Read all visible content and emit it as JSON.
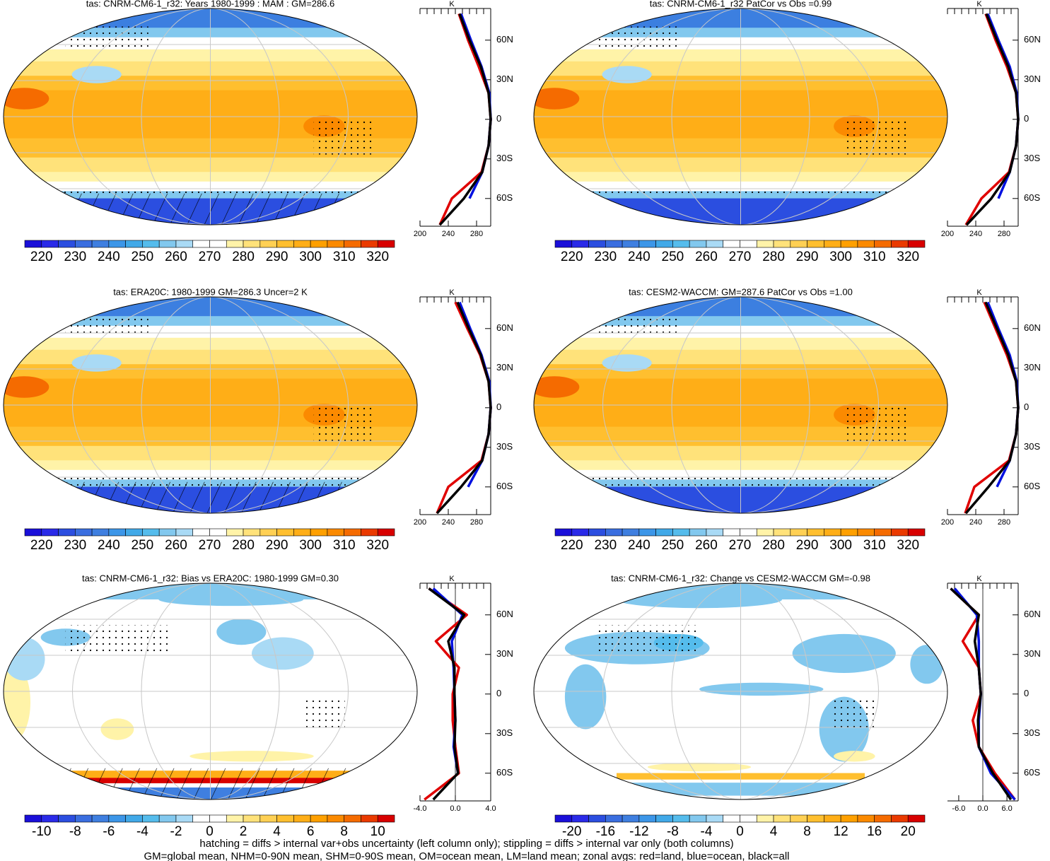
{
  "panels": [
    {
      "title": "tas: CNRM-CM6-1_r32: Years 1980-1999 : MAM : GM=286.6",
      "colorbar": {
        "colors": [
          "#1a0fd9",
          "#2a2ae8",
          "#2b4ee0",
          "#3a6ee0",
          "#3f7fe0",
          "#3c96e8",
          "#41a9e8",
          "#55bcec",
          "#82c8ee",
          "#a9daf5",
          "#ffffff",
          "#ffffff",
          "#fff3a8",
          "#ffe27a",
          "#ffd054",
          "#ffbf2f",
          "#ffae17",
          "#ffa000",
          "#fb8a00",
          "#f56b00",
          "#ea3a00",
          "#d80000"
        ],
        "labels": [
          220,
          230,
          240,
          250,
          260,
          270,
          280,
          290,
          300,
          310,
          320
        ]
      },
      "profile": {
        "x_label": "K",
        "xlim": [
          200,
          300
        ],
        "xticks": [
          200,
          240,
          280
        ],
        "ylim": [
          -81,
          84
        ],
        "yticks": [
          {
            "value": 60,
            "label": "60N"
          },
          {
            "value": 30,
            "label": "30N"
          },
          0,
          {
            "value": -30,
            "label": "30S"
          },
          {
            "value": -60,
            "label": "60S"
          }
        ],
        "lats": [
          80,
          60,
          40,
          20,
          0,
          -20,
          -40,
          -60,
          -80
        ],
        "series": [
          {
            "color": "#e00000",
            "values": [
              255,
              268,
              283,
              297,
              300,
              297,
              287,
              245,
              228
            ]
          },
          {
            "color": "#0010e0",
            "values": [
              258,
              272,
              287,
              298,
              300,
              297,
              288,
              270,
              null
            ]
          },
          {
            "color": "#000000",
            "values": [
              256,
              270,
              286,
              297,
              300,
              297,
              288,
              262,
              228
            ]
          }
        ]
      }
    },
    {
      "title": "tas: CNRM-CM6-1_r32 PatCor vs Obs =0.99",
      "colorbar": {
        "colors": [
          "#1a0fd9",
          "#2a2ae8",
          "#2b4ee0",
          "#3a6ee0",
          "#3f7fe0",
          "#3c96e8",
          "#41a9e8",
          "#55bcec",
          "#82c8ee",
          "#a9daf5",
          "#ffffff",
          "#ffffff",
          "#fff3a8",
          "#ffe27a",
          "#ffd054",
          "#ffbf2f",
          "#ffae17",
          "#ffa000",
          "#fb8a00",
          "#f56b00",
          "#ea3a00",
          "#d80000"
        ],
        "labels": [
          220,
          230,
          240,
          250,
          260,
          270,
          280,
          290,
          300,
          310,
          320
        ]
      },
      "profile": {
        "x_label": "K",
        "xlim": [
          200,
          300
        ],
        "xticks": [
          200,
          240,
          280
        ],
        "ylim": [
          -81,
          84
        ],
        "yticks": [
          {
            "value": 60,
            "label": "60N"
          },
          {
            "value": 30,
            "label": "30N"
          },
          0,
          {
            "value": -30,
            "label": "30S"
          },
          {
            "value": -60,
            "label": "60S"
          }
        ],
        "lats": [
          80,
          60,
          40,
          20,
          0,
          -20,
          -40,
          -60,
          -80
        ],
        "series": [
          {
            "color": "#e00000",
            "values": [
              254,
              268,
              284,
              297,
              300,
              297,
              287,
              248,
              226
            ]
          },
          {
            "color": "#0010e0",
            "values": [
              257,
              272,
              288,
              298,
              300,
              297,
              288,
              272,
              null
            ]
          },
          {
            "color": "#000000",
            "values": [
              255,
              270,
              286,
              297,
              300,
              297,
              288,
              262,
              227
            ]
          }
        ]
      }
    },
    {
      "title": "tas: ERA20C: 1980-1999 GM=286.3 Uncer=2 K",
      "colorbar": {
        "colors": [
          "#1a0fd9",
          "#2a2ae8",
          "#2b4ee0",
          "#3a6ee0",
          "#3f7fe0",
          "#3c96e8",
          "#41a9e8",
          "#55bcec",
          "#82c8ee",
          "#a9daf5",
          "#ffffff",
          "#ffffff",
          "#fff3a8",
          "#ffe27a",
          "#ffd054",
          "#ffbf2f",
          "#ffae17",
          "#ffa000",
          "#fb8a00",
          "#f56b00",
          "#ea3a00",
          "#d80000"
        ],
        "labels": [
          220,
          230,
          240,
          250,
          260,
          270,
          280,
          290,
          300,
          310,
          320
        ]
      },
      "profile": {
        "x_label": "K",
        "xlim": [
          200,
          300
        ],
        "xticks": [
          200,
          240,
          280
        ],
        "ylim": [
          -81,
          84
        ],
        "yticks": [
          {
            "value": 60,
            "label": "60N"
          },
          {
            "value": 30,
            "label": "30N"
          },
          0,
          {
            "value": -30,
            "label": "30S"
          },
          {
            "value": -60,
            "label": "60S"
          }
        ],
        "lats": [
          80,
          60,
          40,
          20,
          0,
          -20,
          -40,
          -60,
          -80
        ],
        "series": [
          {
            "color": "#e00000",
            "values": [
              250,
              267,
              285,
              297,
              300,
              297,
              287,
              240,
              224
            ]
          },
          {
            "color": "#0010e0",
            "values": [
              256,
              271,
              287,
              298,
              300,
              297,
              288,
              268,
              null
            ]
          },
          {
            "color": "#000000",
            "values": [
              253,
              269,
              286,
              297,
              300,
              297,
              288,
              258,
              224
            ]
          }
        ]
      }
    },
    {
      "title": "tas: CESM2-WACCM: GM=287.6 PatCor vs Obs =1.00",
      "colorbar": {
        "colors": [
          "#1a0fd9",
          "#2a2ae8",
          "#2b4ee0",
          "#3a6ee0",
          "#3f7fe0",
          "#3c96e8",
          "#41a9e8",
          "#55bcec",
          "#82c8ee",
          "#a9daf5",
          "#ffffff",
          "#ffffff",
          "#fff3a8",
          "#ffe27a",
          "#ffd054",
          "#ffbf2f",
          "#ffae17",
          "#ffa000",
          "#fb8a00",
          "#f56b00",
          "#ea3a00",
          "#d80000"
        ],
        "labels": [
          220,
          230,
          240,
          250,
          260,
          270,
          280,
          290,
          300,
          310,
          320
        ]
      },
      "profile": {
        "x_label": "K",
        "xlim": [
          200,
          300
        ],
        "xticks": [
          200,
          240,
          280
        ],
        "ylim": [
          -81,
          84
        ],
        "yticks": [
          {
            "value": 60,
            "label": "60N"
          },
          {
            "value": 30,
            "label": "30N"
          },
          0,
          {
            "value": -30,
            "label": "30S"
          },
          {
            "value": -60,
            "label": "60S"
          }
        ],
        "lats": [
          80,
          60,
          40,
          20,
          0,
          -20,
          -40,
          -60,
          -80
        ],
        "series": [
          {
            "color": "#e00000",
            "values": [
              252,
              268,
              284,
              297,
              300,
              297,
              287,
              238,
              225
            ]
          },
          {
            "color": "#0010e0",
            "values": [
              257,
              272,
              288,
              298,
              300,
              297,
              288,
              270,
              null
            ]
          },
          {
            "color": "#000000",
            "values": [
              254,
              270,
              286,
              297,
              300,
              297,
              288,
              258,
              226
            ]
          }
        ]
      }
    },
    {
      "title": "tas: CNRM-CM6-1_r32: Bias vs ERA20C: 1980-1999 GM=0.30",
      "colorbar": {
        "colors": [
          "#1a0fd9",
          "#2a2ae8",
          "#2b4ee0",
          "#3a6ee0",
          "#3f7fe0",
          "#3c96e8",
          "#41a9e8",
          "#55bcec",
          "#82c8ee",
          "#a9daf5",
          "#ffffff",
          "#ffffff",
          "#fff3a8",
          "#ffe27a",
          "#ffd054",
          "#ffbf2f",
          "#ffae17",
          "#ffa000",
          "#fb8a00",
          "#f56b00",
          "#ea3a00",
          "#d80000"
        ],
        "labels": [
          -10,
          -8,
          -6,
          -4,
          -2,
          0,
          2,
          4,
          6,
          8,
          10
        ]
      },
      "profile": {
        "x_label": "K",
        "xlim": [
          -4,
          4
        ],
        "xticks": [
          {
            "value": -4,
            "label": "-4.0"
          },
          {
            "value": 0,
            "label": "0.0"
          },
          {
            "value": 4,
            "label": "4.0"
          }
        ],
        "ylim": [
          -81,
          84
        ],
        "yticks": [
          {
            "value": 60,
            "label": "60N"
          },
          {
            "value": 30,
            "label": "30N"
          },
          0,
          {
            "value": -30,
            "label": "30S"
          },
          {
            "value": -60,
            "label": "60S"
          }
        ],
        "lats": [
          80,
          60,
          40,
          20,
          0,
          -20,
          -40,
          -60,
          -80
        ],
        "series": [
          {
            "color": "#e00000",
            "values": [
              -3,
              1.3,
              -2.2,
              0.4,
              -0.3,
              -0.3,
              0,
              0.4,
              -3.5
            ]
          },
          {
            "color": "#0010e0",
            "values": [
              -2.5,
              0.8,
              -0.4,
              -0.2,
              -0.1,
              0,
              -0.2,
              0.3,
              null
            ]
          },
          {
            "color": "#000000",
            "values": [
              -3,
              1,
              -0.8,
              -0.1,
              -0.1,
              0,
              -0.1,
              0.3,
              -2.5
            ]
          }
        ]
      }
    },
    {
      "title": "tas: CNRM-CM6-1_r32: Change vs CESM2-WACCM GM=-0.98",
      "colorbar": {
        "colors": [
          "#1a0fd9",
          "#2a2ae8",
          "#2b4ee0",
          "#3a6ee0",
          "#3f7fe0",
          "#3c96e8",
          "#41a9e8",
          "#55bcec",
          "#82c8ee",
          "#a9daf5",
          "#ffffff",
          "#ffffff",
          "#fff3a8",
          "#ffe27a",
          "#ffd054",
          "#ffbf2f",
          "#ffae17",
          "#ffa000",
          "#fb8a00",
          "#f56b00",
          "#ea3a00",
          "#d80000"
        ],
        "labels": [
          -20,
          -16,
          -12,
          -8,
          -4,
          0,
          4,
          8,
          12,
          16,
          20
        ]
      },
      "profile": {
        "x_label": "K",
        "xlim": [
          -8.8,
          8.8
        ],
        "xticks": [
          {
            "value": -6,
            "label": "-6.0"
          },
          {
            "value": 0,
            "label": "0.0"
          },
          {
            "value": 6,
            "label": "6.0"
          }
        ],
        "ylim": [
          -81,
          84
        ],
        "yticks": [
          {
            "value": 60,
            "label": "60N"
          },
          {
            "value": 30,
            "label": "30N"
          },
          0,
          {
            "value": -30,
            "label": "30S"
          },
          {
            "value": -60,
            "label": "60S"
          }
        ],
        "lats": [
          80,
          60,
          40,
          20,
          0,
          -20,
          -40,
          -60,
          -80
        ],
        "series": [
          {
            "color": "#e00000",
            "values": [
              -8,
              -1,
              -5,
              -1,
              -0.5,
              -2.5,
              -1,
              3,
              8
            ]
          },
          {
            "color": "#0010e0",
            "values": [
              -7,
              -1.5,
              -1,
              -1,
              -0.5,
              -1,
              -1,
              2,
              8
            ]
          },
          {
            "color": "#000000",
            "values": [
              -8,
              -1,
              -2,
              -1,
              -0.5,
              -1.2,
              -1,
              2.5,
              7
            ]
          }
        ]
      }
    }
  ],
  "footer": [
    "hatching = diffs > internal var+obs uncertainty (left column only); stippling = diffs > internal var only (both columns)",
    "GM=global mean, NHM=0-90N mean, SHM=0-90S mean, OM=ocean mean, LM=land mean; zonal avgs: red=land, blue=ocean, black=all"
  ]
}
